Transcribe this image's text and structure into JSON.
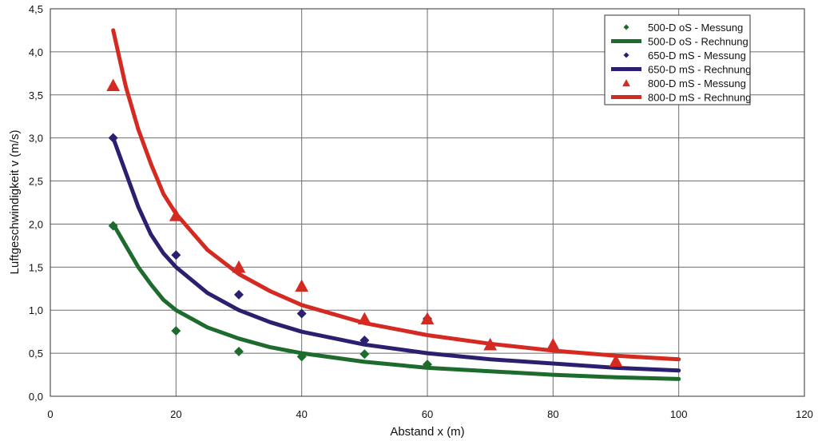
{
  "chart_data": {
    "type": "line",
    "xlabel": "Abstand x (m)",
    "ylabel": "Luftgeschwindigkeit v (m/s)",
    "xlim": [
      0,
      120
    ],
    "ylim": [
      0,
      4.5
    ],
    "x_ticks": [
      0,
      20,
      40,
      60,
      80,
      100,
      120
    ],
    "y_ticks": [
      0,
      0.5,
      1.0,
      1.5,
      2.0,
      2.5,
      3.0,
      3.5,
      4.0,
      4.5
    ],
    "x_tick_labels": [
      "0",
      "20",
      "40",
      "60",
      "80",
      "100",
      "120"
    ],
    "y_tick_labels": [
      "0,0",
      "0,5",
      "1,0",
      "1,5",
      "2,0",
      "2,5",
      "3,0",
      "3,5",
      "4,0",
      "4,5"
    ],
    "grid": true,
    "legend_position": "top-right",
    "series": [
      {
        "name": "500-D oS - Messung",
        "kind": "scatter",
        "marker": "diamond",
        "color": "#1e6b2e",
        "points": [
          [
            10,
            1.98
          ],
          [
            20,
            0.76
          ],
          [
            30,
            0.52
          ],
          [
            40,
            0.46
          ],
          [
            50,
            0.49
          ],
          [
            60,
            0.37
          ]
        ]
      },
      {
        "name": "500-D oS - Rechnung",
        "kind": "line",
        "color": "#1e6b2e",
        "points": [
          [
            10,
            2.0
          ],
          [
            12,
            1.75
          ],
          [
            14,
            1.5
          ],
          [
            16,
            1.3
          ],
          [
            18,
            1.12
          ],
          [
            20,
            1.0
          ],
          [
            25,
            0.8
          ],
          [
            30,
            0.67
          ],
          [
            35,
            0.57
          ],
          [
            40,
            0.5
          ],
          [
            50,
            0.4
          ],
          [
            60,
            0.33
          ],
          [
            70,
            0.29
          ],
          [
            80,
            0.25
          ],
          [
            90,
            0.22
          ],
          [
            100,
            0.2
          ]
        ]
      },
      {
        "name": "650-D mS - Messung",
        "kind": "scatter",
        "marker": "diamond",
        "color": "#2b1f70",
        "points": [
          [
            10,
            3.0
          ],
          [
            20,
            1.64
          ],
          [
            30,
            1.18
          ],
          [
            40,
            0.96
          ],
          [
            50,
            0.65
          ],
          [
            60,
            0.9
          ]
        ]
      },
      {
        "name": "650-D mS - Rechnung",
        "kind": "line",
        "color": "#2b1f70",
        "points": [
          [
            10,
            3.0
          ],
          [
            12,
            2.6
          ],
          [
            14,
            2.2
          ],
          [
            16,
            1.88
          ],
          [
            18,
            1.66
          ],
          [
            20,
            1.5
          ],
          [
            25,
            1.2
          ],
          [
            30,
            1.0
          ],
          [
            35,
            0.86
          ],
          [
            40,
            0.75
          ],
          [
            50,
            0.6
          ],
          [
            60,
            0.5
          ],
          [
            70,
            0.43
          ],
          [
            80,
            0.38
          ],
          [
            90,
            0.33
          ],
          [
            100,
            0.3
          ]
        ]
      },
      {
        "name": "800-D mS - Messung",
        "kind": "scatter",
        "marker": "triangle",
        "color": "#d42a22",
        "points": [
          [
            10,
            3.61
          ],
          [
            20,
            2.1
          ],
          [
            30,
            1.5
          ],
          [
            40,
            1.28
          ],
          [
            50,
            0.9
          ],
          [
            60,
            0.9
          ],
          [
            70,
            0.6
          ],
          [
            80,
            0.6
          ],
          [
            90,
            0.41
          ]
        ]
      },
      {
        "name": "800-D mS - Rechnung",
        "kind": "line",
        "color": "#d42a22",
        "points": [
          [
            10,
            4.25
          ],
          [
            12,
            3.6
          ],
          [
            14,
            3.1
          ],
          [
            16,
            2.7
          ],
          [
            18,
            2.35
          ],
          [
            20,
            2.12
          ],
          [
            25,
            1.7
          ],
          [
            30,
            1.42
          ],
          [
            35,
            1.22
          ],
          [
            40,
            1.06
          ],
          [
            50,
            0.85
          ],
          [
            60,
            0.71
          ],
          [
            70,
            0.61
          ],
          [
            80,
            0.53
          ],
          [
            90,
            0.47
          ],
          [
            100,
            0.43
          ]
        ]
      }
    ]
  }
}
